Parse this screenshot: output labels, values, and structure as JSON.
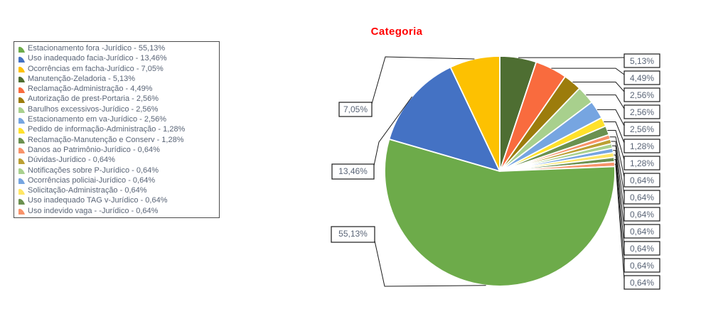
{
  "page": {
    "background": "#FFFFFF"
  },
  "chart_data": {
    "type": "pie",
    "title": "Categoria",
    "title_color": "#FF0000",
    "legend_position": "left",
    "legend_separator": " - ",
    "value_format": "percent-decimal-comma",
    "start_slice_index": 3,
    "direction": "clockwise",
    "slices": [
      {
        "label": "Estacionamento fora -Jurídico",
        "value": 55.13,
        "display": "55,13%",
        "color": "#6DAB4A"
      },
      {
        "label": "Uso inadequado facia-Jurídico",
        "value": 13.46,
        "display": "13,46%",
        "color": "#4472C4"
      },
      {
        "label": "Ocorrências em facha-Jurídico",
        "value": 7.05,
        "display": "7,05%",
        "color": "#FDC101"
      },
      {
        "label": "Manutenção-Zeladoria",
        "value": 5.13,
        "display": "5,13%",
        "color": "#4E6E32"
      },
      {
        "label": "Reclamação-Administração",
        "value": 4.49,
        "display": "4,49%",
        "color": "#F96B3E"
      },
      {
        "label": "Autorização de prest-Portaria",
        "value": 2.56,
        "display": "2,56%",
        "color": "#9C7C0C"
      },
      {
        "label": "Barulhos excessivos-Jurídico",
        "value": 2.56,
        "display": "2,56%",
        "color": "#A8D08D"
      },
      {
        "label": "Estacionamento em va-Jurídico",
        "value": 2.56,
        "display": "2,56%",
        "color": "#76A5E1"
      },
      {
        "label": "Pedido de informação-Administração",
        "value": 1.28,
        "display": "1,28%",
        "color": "#FFE12B"
      },
      {
        "label": "Reclamação-Manutenção e Conserv",
        "value": 1.28,
        "display": "1,28%",
        "color": "#6B9150"
      },
      {
        "label": "Danos ao Patrimônio-Jurídico",
        "value": 0.64,
        "display": "0,64%",
        "color": "#F8936A"
      },
      {
        "label": "Dúvidas-Jurídico",
        "value": 0.64,
        "display": "0,64%",
        "color": "#BCA033"
      },
      {
        "label": "Notificações sobre P-Jurídico",
        "value": 0.64,
        "display": "0,64%",
        "color": "#A8D08D"
      },
      {
        "label": "Ocorrências policiai-Jurídico",
        "value": 0.64,
        "display": "0,64%",
        "color": "#76A5E1"
      },
      {
        "label": "Solicitação-Administração",
        "value": 0.64,
        "display": "0,64%",
        "color": "#FFE664"
      },
      {
        "label": "Uso inadequado TAG v-Jurídico",
        "value": 0.64,
        "display": "0,64%",
        "color": "#6B9150"
      },
      {
        "label": "Uso indevido vaga - -Jurídico",
        "value": 0.64,
        "display": "0,64%",
        "color": "#F8936A"
      }
    ]
  }
}
